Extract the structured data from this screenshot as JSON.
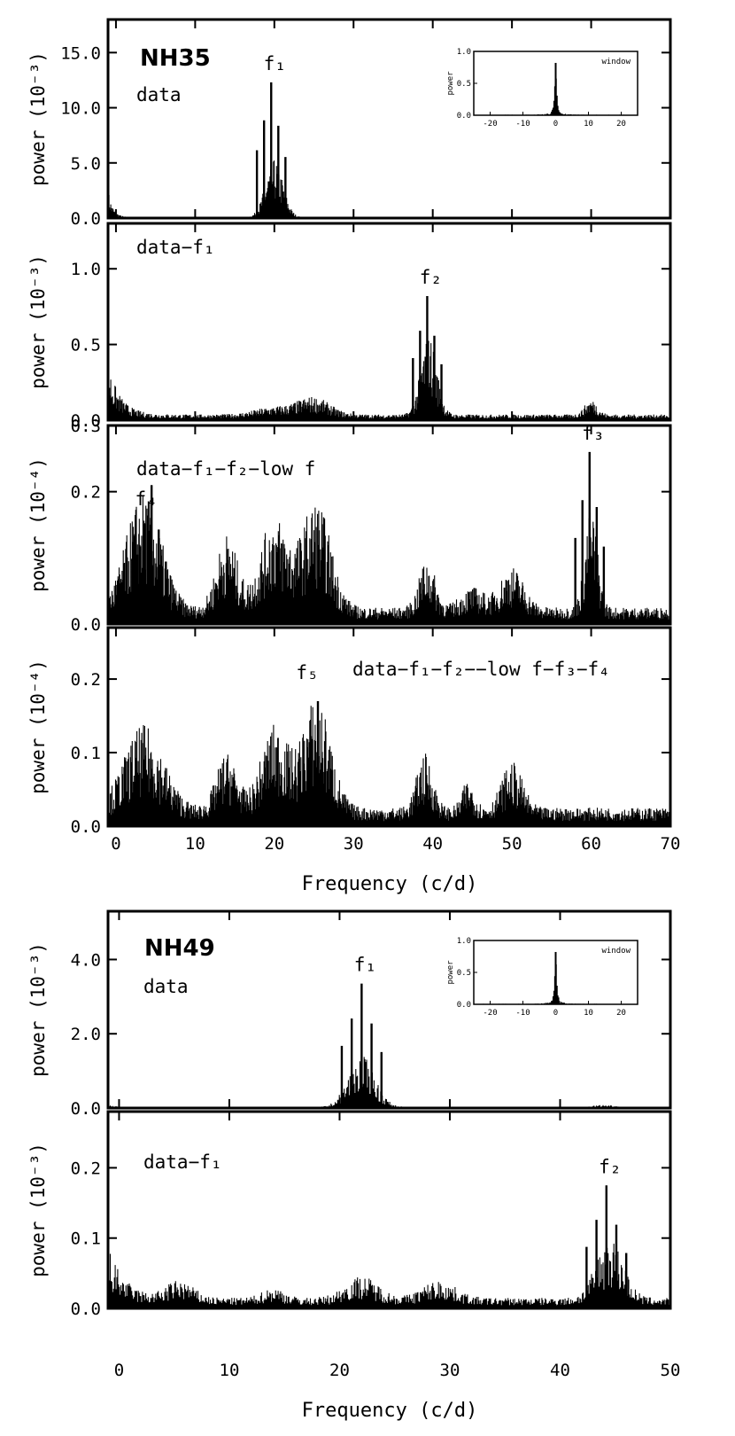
{
  "figures": [
    {
      "name": "NH35",
      "xlabel": "Frequency (c/d)",
      "xlim": [
        -1,
        70
      ],
      "xticks": [
        0,
        10,
        20,
        30,
        40,
        50,
        60,
        70
      ],
      "panels": [
        {
          "annotation": "data",
          "ylabel": "power (10⁻³)",
          "ylim": [
            0,
            18
          ],
          "yticks": [
            "0.0",
            "5.0",
            "10.0",
            "15.0"
          ],
          "ytick_values": [
            0,
            5,
            10,
            15
          ],
          "peaks": [
            {
              "label": "f₁",
              "x": 19.6,
              "y": 12.3
            }
          ],
          "inset": {
            "label": "window",
            "ylabel": "power",
            "xlim": [
              -25,
              25
            ],
            "ylim": [
              0,
              1.0
            ],
            "xticks": [
              "-20",
              "-10",
              "0",
              "10",
              "20"
            ],
            "xtick_values": [
              -20,
              -10,
              0,
              10,
              20
            ],
            "yticks": [
              "0.0",
              "0.5",
              "1.0"
            ],
            "ytick_values": [
              0,
              0.5,
              1.0
            ]
          }
        },
        {
          "annotation": "data−f₁",
          "ylabel": "power (10⁻³)",
          "ylim": [
            0,
            1.3
          ],
          "yticks": [
            "0.0",
            "0.5",
            "1.0"
          ],
          "ytick_values": [
            0,
            0.5,
            1.0
          ],
          "peaks": [
            {
              "label": "f₂",
              "x": 39.3,
              "y": 0.82
            }
          ]
        },
        {
          "annotation": "data−f₁−f₂−low f",
          "ylabel": "power (10⁻⁴)",
          "ylim": [
            0,
            0.3
          ],
          "yticks": [
            "0.0",
            "0.2",
            "0.3"
          ],
          "ytick_values": [
            0,
            0.2,
            0.3
          ],
          "peaks": [
            {
              "label": "f₄",
              "x": 4.5,
              "y": 0.21
            },
            {
              "label": "f₃",
              "x": 59.8,
              "y": 0.26
            }
          ]
        },
        {
          "annotation": "data−f₁−f₂−−low f−f₃−f₄",
          "ylabel": "power (10⁻⁴)",
          "ylim": [
            0,
            0.27
          ],
          "yticks": [
            "0.0",
            "0.1",
            "0.2"
          ],
          "ytick_values": [
            0,
            0.1,
            0.2
          ],
          "peaks": [
            {
              "label": "f₅",
              "x": 25.5,
              "y": 0.17
            }
          ]
        }
      ]
    },
    {
      "name": "NH49",
      "xlabel": "Frequency (c/d)",
      "xlim": [
        -1,
        50
      ],
      "xticks": [
        0,
        10,
        20,
        30,
        40,
        50
      ],
      "panels": [
        {
          "annotation": "data",
          "ylabel": "power (10⁻³)",
          "ylim": [
            0,
            5.3
          ],
          "yticks": [
            "0.0",
            "2.0",
            "4.0"
          ],
          "ytick_values": [
            0,
            2,
            4
          ],
          "peaks": [
            {
              "label": "f₁",
              "x": 22.0,
              "y": 3.35
            }
          ],
          "inset": {
            "label": "window",
            "ylabel": "power",
            "xlim": [
              -25,
              25
            ],
            "ylim": [
              0,
              1.0
            ],
            "xticks": [
              "-20",
              "-10",
              "0",
              "10",
              "20"
            ],
            "xtick_values": [
              -20,
              -10,
              0,
              10,
              20
            ],
            "yticks": [
              "0.0",
              "0.5",
              "1.0"
            ],
            "ytick_values": [
              0,
              0.5,
              1.0
            ]
          }
        },
        {
          "annotation": "data−f₁",
          "ylabel": "power (10⁻³)",
          "ylim": [
            0,
            0.28
          ],
          "yticks": [
            "0.0",
            "0.1",
            "0.2"
          ],
          "ytick_values": [
            0,
            0.1,
            0.2
          ],
          "peaks": [
            {
              "label": "f₂",
              "x": 44.2,
              "y": 0.175
            }
          ]
        }
      ]
    }
  ],
  "chart_data": [
    {
      "type": "bar",
      "title": "NH35 data",
      "ylabel": "power (10⁻³)",
      "x": [
        0,
        18,
        19,
        19.6,
        20,
        20.5,
        21,
        22,
        30,
        50
      ],
      "y": [
        0.5,
        3.5,
        8.5,
        12.3,
        8.8,
        4.6,
        9.2,
        2.5,
        0.1,
        0.05
      ],
      "ylim": [
        0,
        18
      ]
    },
    {
      "type": "bar",
      "title": "NH35 data−f₁",
      "ylabel": "power (10⁻³)",
      "x": [
        0,
        3,
        10,
        20,
        25,
        26,
        38,
        38.7,
        39.3,
        40.2,
        41,
        50,
        59,
        60,
        70
      ],
      "y": [
        0.35,
        0.1,
        0.05,
        0.06,
        0.12,
        0.2,
        0.58,
        0.6,
        0.82,
        0.55,
        0.4,
        0.04,
        0.2,
        0.22,
        0.03
      ],
      "ylim": [
        0,
        1.3
      ]
    },
    {
      "type": "bar",
      "title": "NH35 data−f₁−f₂−low f",
      "ylabel": "power (10⁻⁴)",
      "x": [
        0,
        2,
        4.5,
        6,
        10,
        14,
        18,
        20,
        22,
        25,
        27,
        35,
        39,
        45,
        50,
        58,
        59.8,
        61,
        70
      ],
      "y": [
        0.1,
        0.15,
        0.21,
        0.17,
        0.03,
        0.12,
        0.13,
        0.14,
        0.12,
        0.17,
        0.17,
        0.02,
        0.1,
        0.04,
        0.1,
        0.13,
        0.26,
        0.16,
        0.01
      ],
      "ylim": [
        0,
        0.3
      ]
    },
    {
      "type": "bar",
      "title": "NH35 data−f₁−f₂−−low f−f₃−f₄",
      "ylabel": "power (10⁻⁴)",
      "x": [
        0,
        2,
        4.5,
        10,
        14,
        19,
        20,
        23,
        25.5,
        27,
        35,
        39,
        44,
        50,
        60,
        70
      ],
      "y": [
        0.07,
        0.11,
        0.13,
        0.02,
        0.08,
        0.12,
        0.15,
        0.11,
        0.17,
        0.11,
        0.02,
        0.1,
        0.05,
        0.08,
        0.02,
        0.01
      ],
      "ylim": [
        0,
        0.27
      ]
    },
    {
      "type": "bar",
      "title": "NH49 data",
      "ylabel": "power (10⁻³)",
      "x": [
        0,
        20,
        20.7,
        21.4,
        22.0,
        22.7,
        23.4,
        30,
        44,
        50
      ],
      "y": [
        0.05,
        0.4,
        2.5,
        1.5,
        3.35,
        1.8,
        2.8,
        0.03,
        0.06,
        0.02
      ],
      "ylim": [
        0,
        5.3
      ]
    },
    {
      "type": "bar",
      "title": "NH49 data−f₁",
      "ylabel": "power (10⁻³)",
      "x": [
        0,
        2,
        5,
        10,
        14,
        20,
        22,
        28,
        30,
        40,
        43,
        44.2,
        45.2,
        46,
        50
      ],
      "y": [
        0.09,
        0.02,
        0.04,
        0.02,
        0.03,
        0.03,
        0.04,
        0.04,
        0.04,
        0.02,
        0.1,
        0.175,
        0.16,
        0.08,
        0.02
      ],
      "ylim": [
        0,
        0.28
      ]
    }
  ]
}
